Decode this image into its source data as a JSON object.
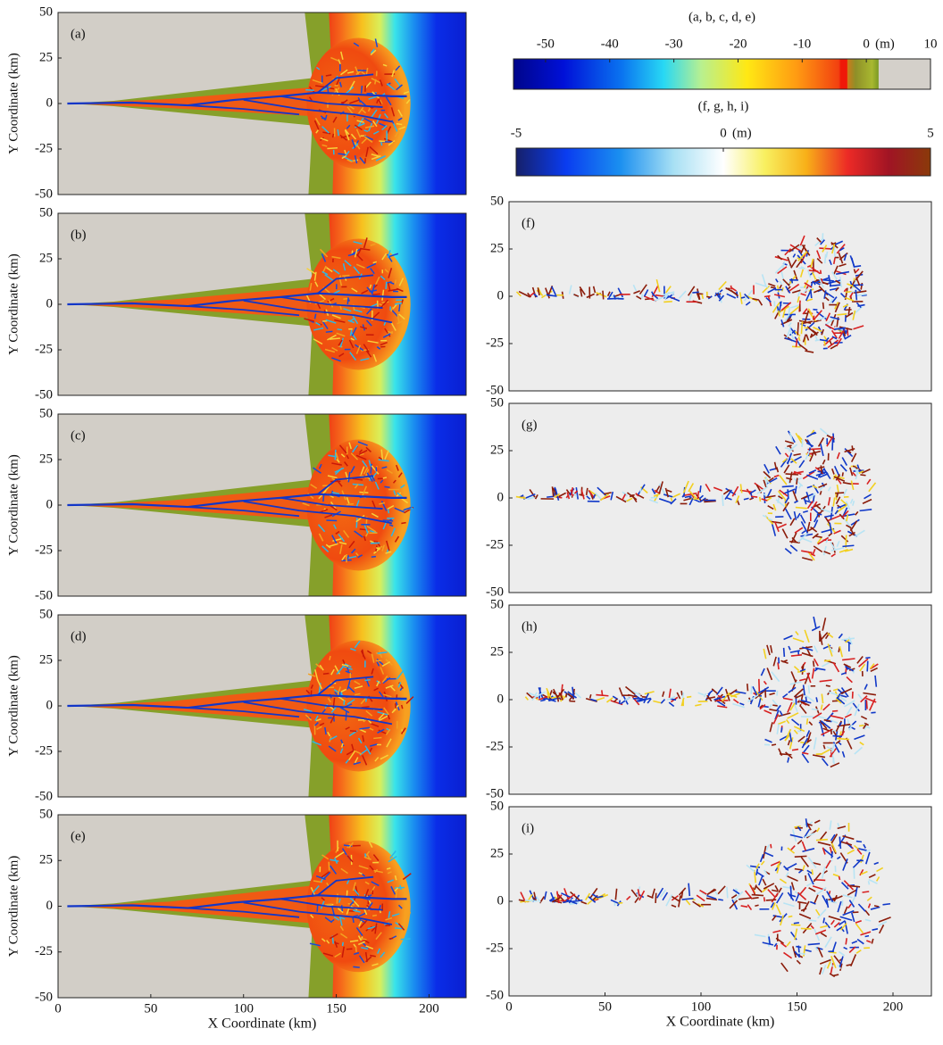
{
  "chart_data": [
    {
      "type": "map",
      "label": "(a)",
      "xlim": [
        0,
        220
      ],
      "ylim": [
        -50,
        50
      ],
      "yticks": [
        -50,
        -25,
        0,
        25,
        50
      ],
      "ylabel": "Y Coordinate (km)"
    },
    {
      "type": "map",
      "label": "(b)",
      "xlim": [
        0,
        220
      ],
      "ylim": [
        -50,
        50
      ],
      "yticks": [
        -50,
        -25,
        0,
        25,
        50
      ],
      "ylabel": "Y Coordinate (km)"
    },
    {
      "type": "map",
      "label": "(c)",
      "xlim": [
        0,
        220
      ],
      "ylim": [
        -50,
        50
      ],
      "yticks": [
        -50,
        -25,
        0,
        25,
        50
      ],
      "ylabel": "Y Coordinate (km)"
    },
    {
      "type": "map",
      "label": "(d)",
      "xlim": [
        0,
        220
      ],
      "ylim": [
        -50,
        50
      ],
      "yticks": [
        -50,
        -25,
        0,
        25,
        50
      ],
      "ylabel": "Y Coordinate (km)"
    },
    {
      "type": "map",
      "label": "(e)",
      "xlim": [
        0,
        220
      ],
      "ylim": [
        -50,
        50
      ],
      "yticks": [
        -50,
        -25,
        0,
        25,
        50
      ],
      "ylabel": "Y Coordinate (km)",
      "xticks": [
        0,
        50,
        100,
        150,
        200
      ],
      "xlabel": "X Coordinate (km)"
    },
    {
      "type": "diff",
      "label": "(f)",
      "xlim": [
        0,
        220
      ],
      "ylim": [
        -50,
        50
      ],
      "yticks": [
        -50,
        -25,
        0,
        25,
        50
      ]
    },
    {
      "type": "diff",
      "label": "(g)",
      "xlim": [
        0,
        220
      ],
      "ylim": [
        -50,
        50
      ],
      "yticks": [
        -50,
        -25,
        0,
        25,
        50
      ]
    },
    {
      "type": "diff",
      "label": "(h)",
      "xlim": [
        0,
        220
      ],
      "ylim": [
        -50,
        50
      ],
      "yticks": [
        -50,
        -25,
        0,
        25,
        50
      ]
    },
    {
      "type": "diff",
      "label": "(i)",
      "xlim": [
        0,
        220
      ],
      "ylim": [
        -50,
        50
      ],
      "yticks": [
        -50,
        -25,
        0,
        25,
        50
      ],
      "xticks": [
        0,
        50,
        100,
        150,
        200
      ],
      "xlabel": "X Coordinate (km)"
    },
    {
      "type": "colorbar",
      "title": "(a, b, c, d, e)",
      "lim": [
        -55,
        10
      ],
      "ticks": [
        -50,
        -40,
        -30,
        -20,
        -10,
        0,
        10
      ],
      "unit": "(m)"
    },
    {
      "type": "colorbar",
      "title": "(f, g, h, i)",
      "lim": [
        -5,
        5
      ],
      "ticks": [
        -5,
        0,
        5
      ],
      "unit": "(m)"
    }
  ]
}
